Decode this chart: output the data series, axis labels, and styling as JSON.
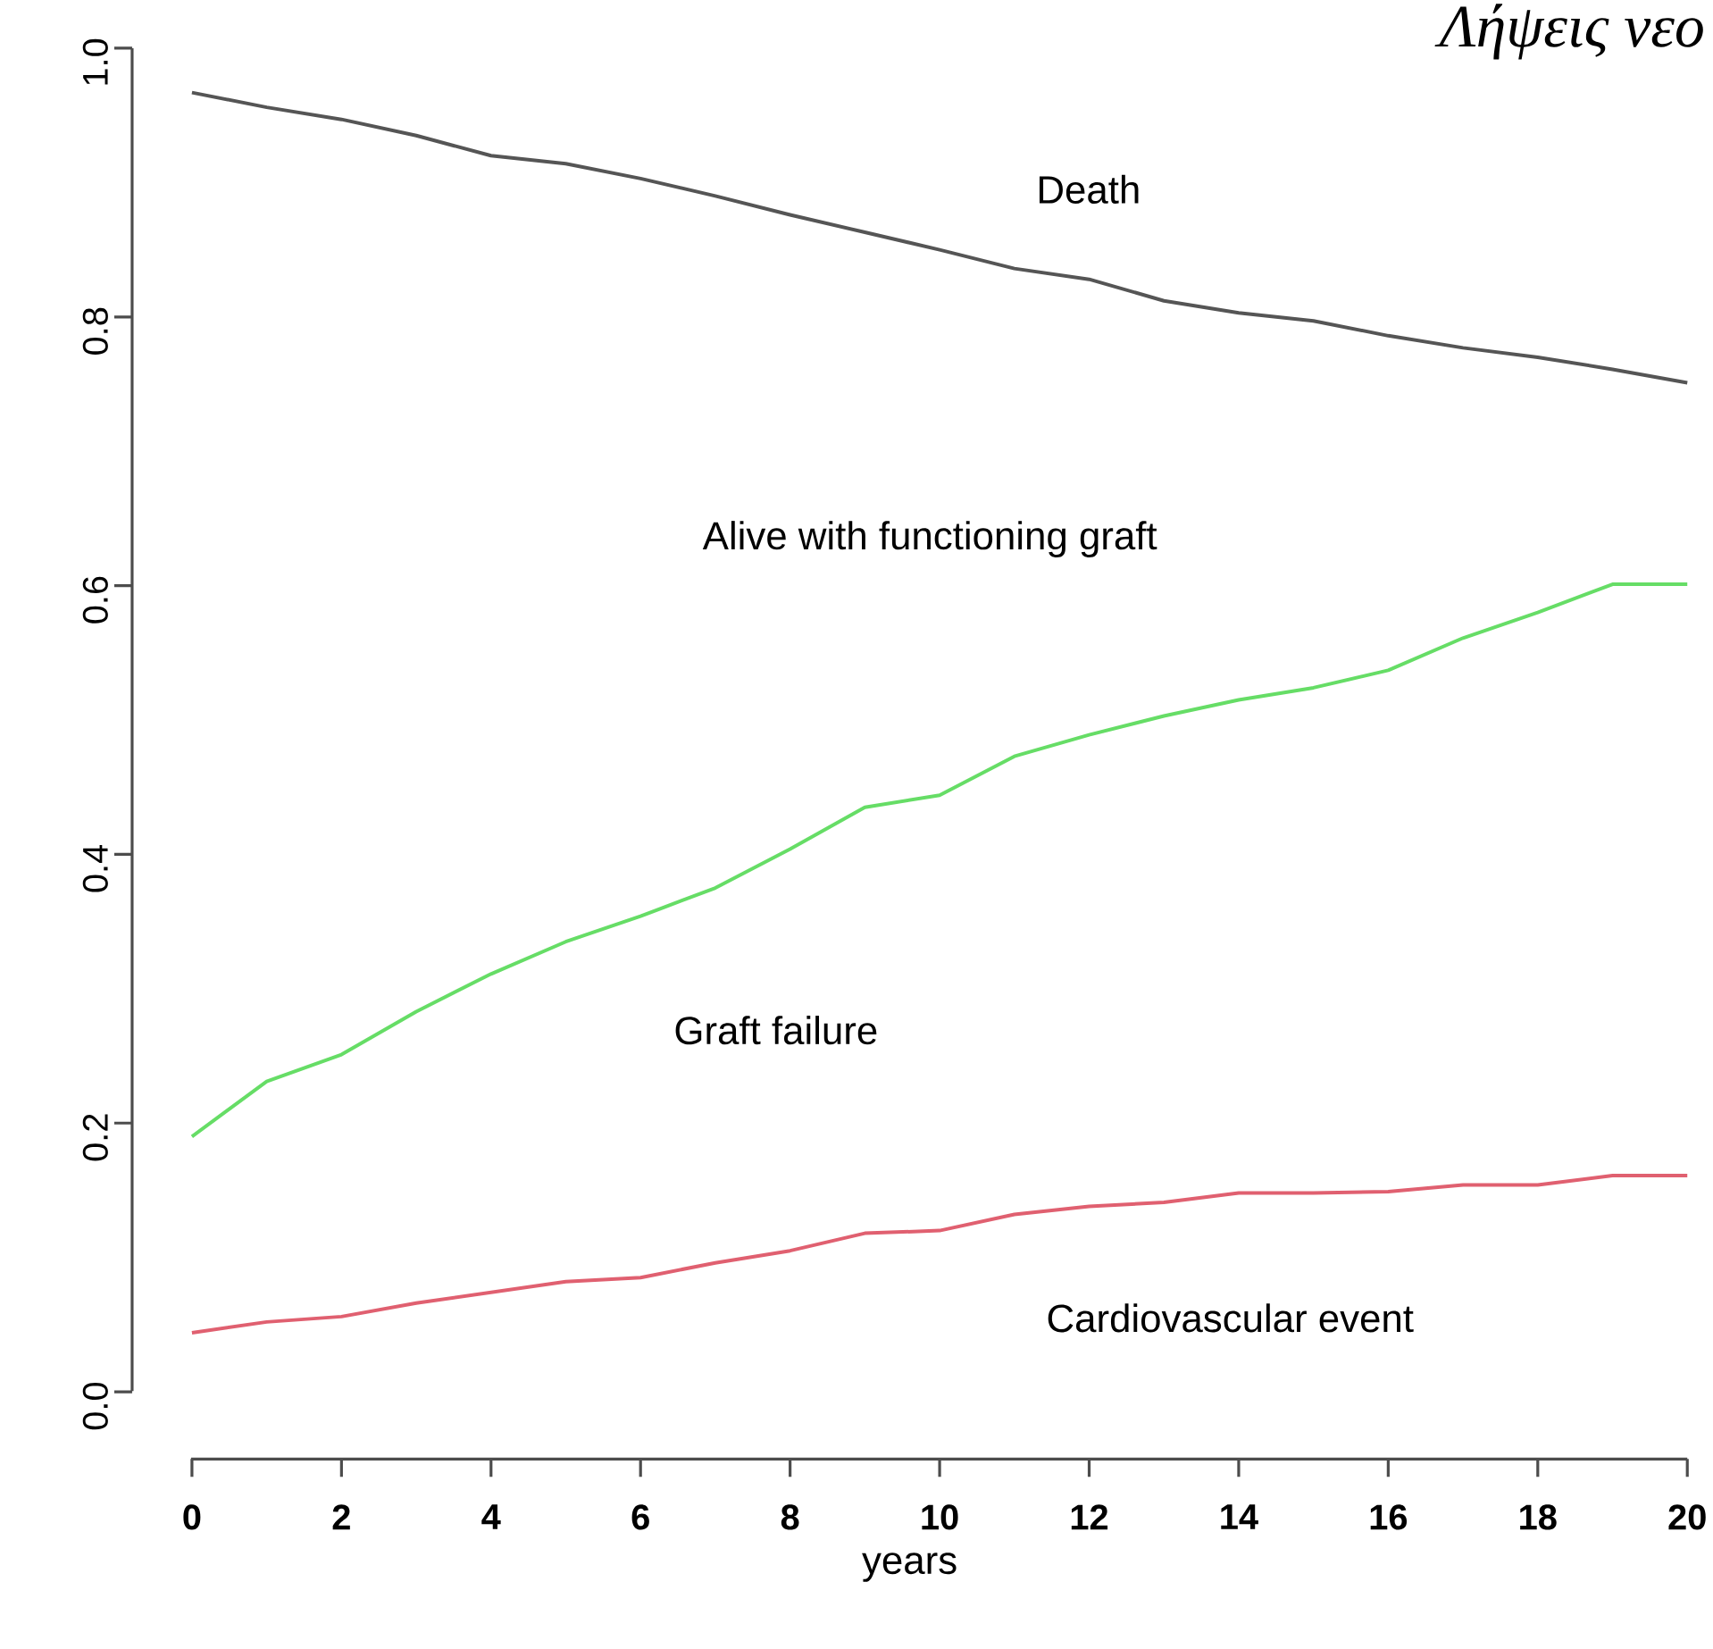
{
  "chart_data": {
    "type": "line",
    "title": "Λήψεις νεο",
    "xlabel": "years",
    "x": [
      0,
      1,
      2,
      3,
      4,
      5,
      6,
      7,
      8,
      9,
      10,
      11,
      12,
      13,
      14,
      15,
      16,
      17,
      18,
      19,
      20
    ],
    "series": [
      {
        "color": "#555555",
        "values": [
          0.967,
          0.956,
          0.947,
          0.935,
          0.92,
          0.914,
          0.903,
          0.89,
          0.876,
          0.863,
          0.85,
          0.836,
          0.828,
          0.812,
          0.803,
          0.797,
          0.786,
          0.777,
          0.77,
          0.761,
          0.751
        ]
      },
      {
        "color": "#66dd66",
        "values": [
          0.19,
          0.231,
          0.251,
          0.283,
          0.311,
          0.335,
          0.354,
          0.375,
          0.404,
          0.435,
          0.444,
          0.473,
          0.489,
          0.503,
          0.515,
          0.524,
          0.537,
          0.561,
          0.58,
          0.601,
          0.601
        ]
      },
      {
        "color": "#e06070",
        "values": [
          0.044,
          0.052,
          0.056,
          0.066,
          0.074,
          0.082,
          0.085,
          0.096,
          0.105,
          0.118,
          0.12,
          0.132,
          0.138,
          0.141,
          0.148,
          0.148,
          0.149,
          0.154,
          0.154,
          0.161,
          0.161
        ]
      }
    ],
    "annotations": [
      "Death",
      "Alive with functioning graft",
      "Graft failure",
      "Cardiovascular event"
    ],
    "xlim": [
      -0.8,
      20
    ],
    "ylim": [
      -0.05,
      1.0
    ],
    "xticks": [
      0,
      2,
      4,
      6,
      8,
      10,
      12,
      14,
      16,
      18,
      20
    ],
    "yticks": [
      {
        "value": 0,
        "label": "0.0"
      },
      {
        "value": 0.2,
        "label": "0.2"
      },
      {
        "value": 0.4,
        "label": "0.4"
      },
      {
        "value": 0.6,
        "label": "0.6"
      },
      {
        "value": 0.8,
        "label": "0.8"
      },
      {
        "value": 1.0,
        "label": "1.0"
      }
    ],
    "grid": false,
    "legend": false,
    "marker": "none",
    "line_style": "solid"
  }
}
